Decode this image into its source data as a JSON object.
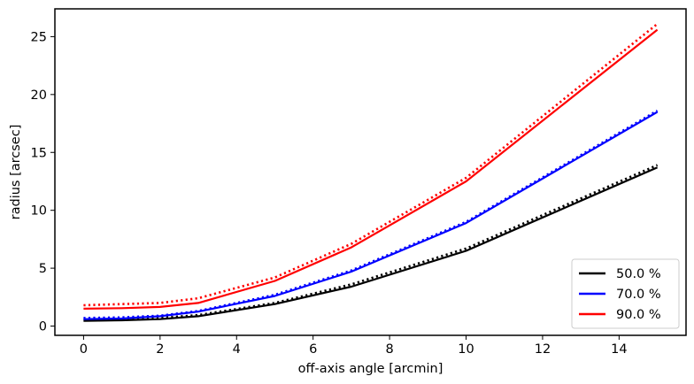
{
  "chart_data": {
    "type": "line",
    "xlabel": "off-axis angle [arcmin]",
    "ylabel": "radius [arcsec]",
    "xlim": [
      -0.75,
      15.75
    ],
    "ylim": [
      -0.8,
      27.4
    ],
    "xticks": [
      0,
      2,
      4,
      6,
      8,
      10,
      12,
      14
    ],
    "yticks": [
      0,
      5,
      10,
      15,
      20,
      25
    ],
    "grid": false,
    "legend_position": "lower-right",
    "series": [
      {
        "name": "50.0 %",
        "color": "#000000",
        "style": "solid",
        "x": [
          0,
          1,
          2,
          3,
          5,
          7,
          10,
          15
        ],
        "y": [
          0.45,
          0.5,
          0.6,
          0.85,
          1.9,
          3.4,
          6.5,
          13.7
        ]
      },
      {
        "name": "",
        "color": "#000000",
        "style": "dotted",
        "x": [
          0,
          1,
          2,
          3,
          5,
          7,
          10,
          15
        ],
        "y": [
          0.55,
          0.6,
          0.7,
          0.95,
          2.0,
          3.6,
          6.7,
          13.9
        ]
      },
      {
        "name": "70.0 %",
        "color": "#0000ff",
        "style": "solid",
        "x": [
          0,
          1,
          2,
          3,
          5,
          7,
          10,
          15
        ],
        "y": [
          0.6,
          0.65,
          0.85,
          1.25,
          2.6,
          4.7,
          8.9,
          18.5
        ]
      },
      {
        "name": "",
        "color": "#0000ff",
        "style": "dotted",
        "x": [
          0,
          1,
          2,
          3,
          5,
          7,
          10,
          15
        ],
        "y": [
          0.7,
          0.75,
          0.9,
          1.3,
          2.7,
          4.8,
          9.0,
          18.6
        ]
      },
      {
        "name": "90.0 %",
        "color": "#ff0000",
        "style": "solid",
        "x": [
          0,
          1,
          2,
          3,
          5,
          7,
          10,
          15
        ],
        "y": [
          1.5,
          1.55,
          1.65,
          2.0,
          3.9,
          6.8,
          12.5,
          25.6
        ]
      },
      {
        "name": "",
        "color": "#ff0000",
        "style": "dotted",
        "x": [
          0,
          1,
          2,
          3,
          5,
          7,
          10,
          15
        ],
        "y": [
          1.8,
          1.9,
          2.0,
          2.4,
          4.2,
          7.1,
          12.8,
          26.1
        ]
      }
    ]
  }
}
